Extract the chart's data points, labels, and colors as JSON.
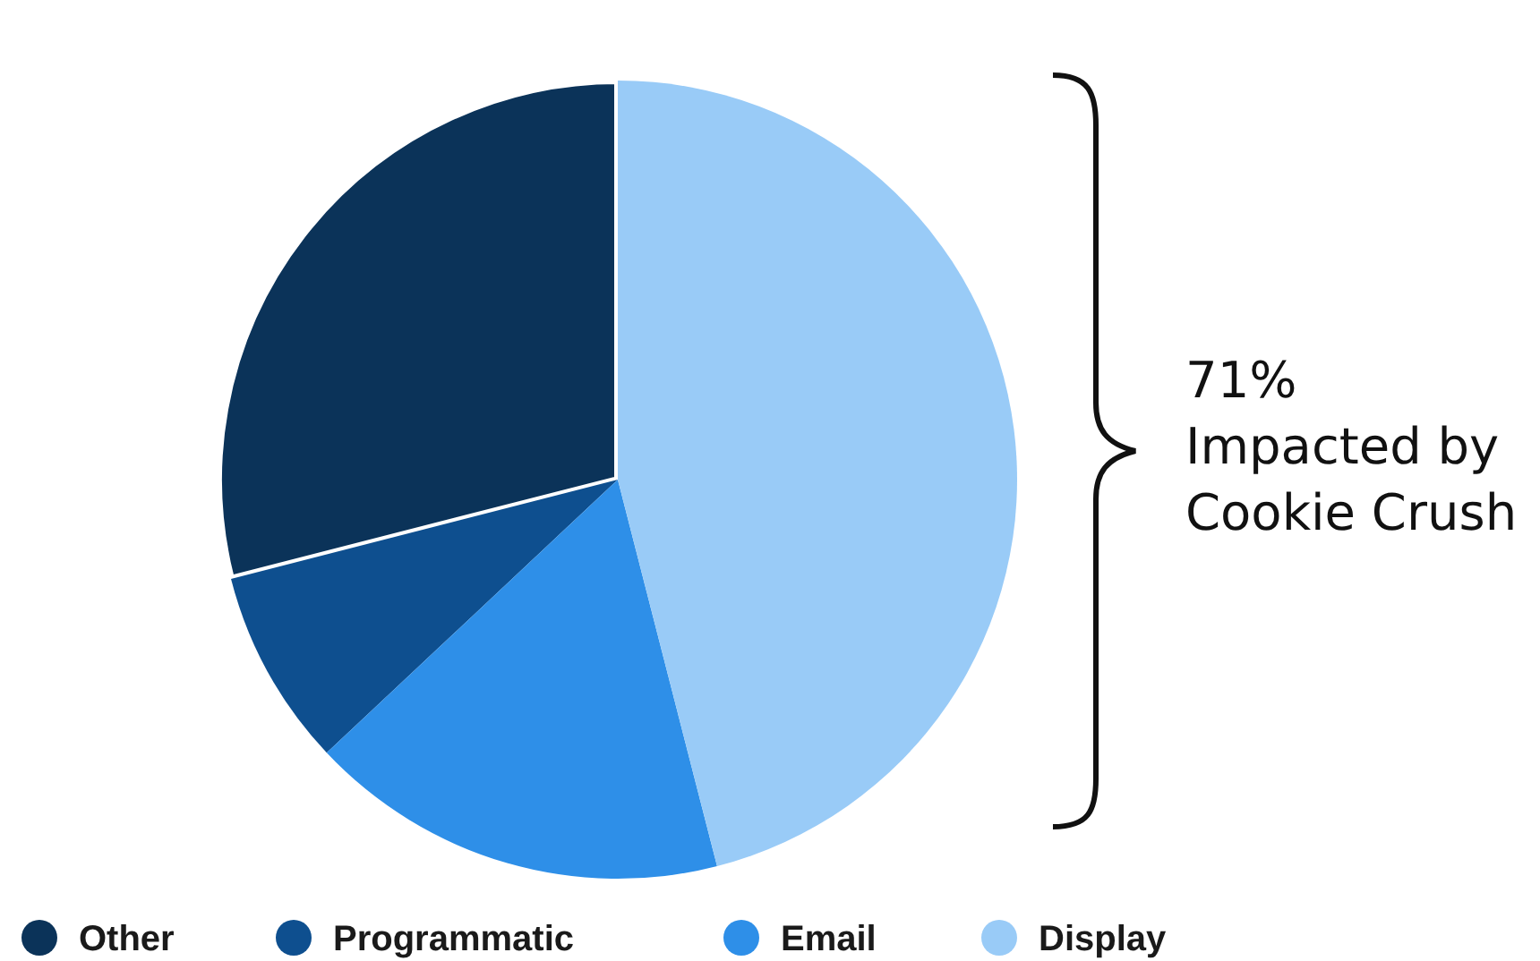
{
  "chart_data": {
    "type": "pie",
    "categories": [
      "Other",
      "Programmatic",
      "Email",
      "Display"
    ],
    "values": [
      29,
      8,
      17,
      46
    ],
    "colors": [
      "#0b3359",
      "#0e4f8f",
      "#2e8fe8",
      "#99cbf7"
    ],
    "legend": "bottom",
    "annotations": [
      "71%\nImpacted by\nCookie Crush"
    ]
  }
}
